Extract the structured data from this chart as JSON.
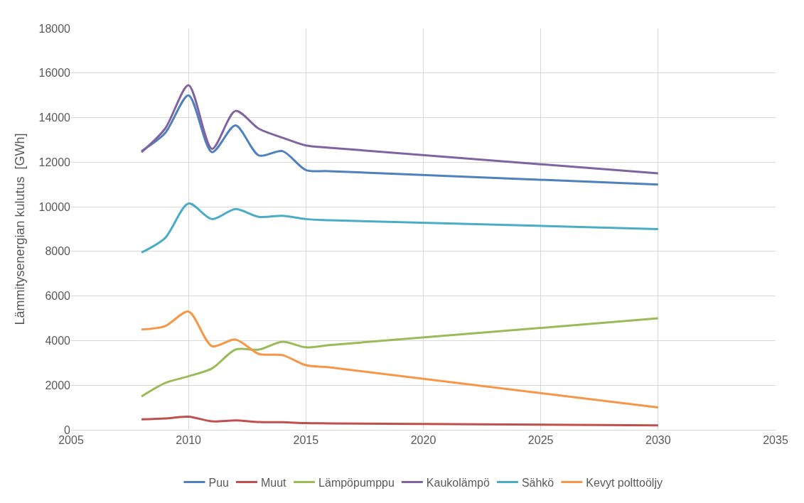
{
  "chart_data": {
    "type": "line",
    "ylabel": "Lämmitysenergian kulutus  [GWh]",
    "x": [
      2008,
      2009,
      2010,
      2011,
      2012,
      2013,
      2014,
      2015,
      2016,
      2030
    ],
    "series": [
      {
        "name": "Puu",
        "color": "#4f81bd",
        "values": [
          12500,
          13300,
          15000,
          12450,
          13650,
          12300,
          12500,
          11650,
          11600,
          11000
        ]
      },
      {
        "name": "Muut",
        "color": "#c0504d",
        "values": [
          470,
          510,
          590,
          380,
          420,
          350,
          340,
          300,
          290,
          200
        ]
      },
      {
        "name": "Lämpöpumppu",
        "color": "#9bbb59",
        "values": [
          1500,
          2100,
          2400,
          2750,
          3600,
          3600,
          3950,
          3700,
          3800,
          5000
        ]
      },
      {
        "name": "Kaukolämpö",
        "color": "#8064a2",
        "values": [
          12450,
          13500,
          15450,
          12600,
          14300,
          13500,
          13100,
          12750,
          12650,
          11500
        ]
      },
      {
        "name": "Sähkö",
        "color": "#4bacc6",
        "values": [
          7950,
          8600,
          10150,
          9450,
          9900,
          9550,
          9600,
          9450,
          9400,
          9000
        ]
      },
      {
        "name": "Kevyt polttoöljy",
        "color": "#f79646",
        "values": [
          4500,
          4650,
          5300,
          3750,
          4050,
          3400,
          3350,
          2900,
          2800,
          1000
        ]
      }
    ],
    "xlim": [
      2005,
      2035
    ],
    "xticks": [
      2005,
      2010,
      2015,
      2020,
      2025,
      2030,
      2035
    ],
    "ylim": [
      0,
      18000
    ],
    "yticks": [
      0,
      2000,
      4000,
      6000,
      8000,
      10000,
      12000,
      14000,
      16000,
      18000
    ],
    "grid": true,
    "legend": "bottom",
    "marker": "none",
    "line_style": "solid"
  }
}
